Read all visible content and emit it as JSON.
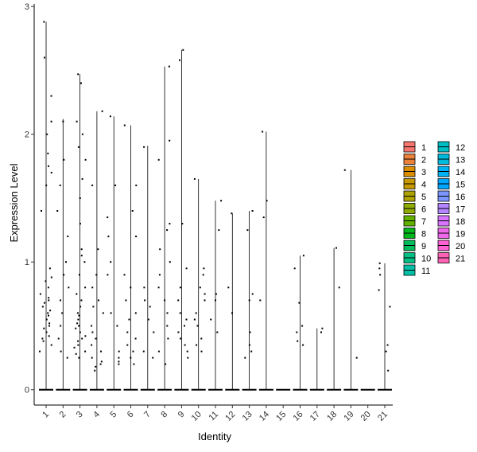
{
  "chart_data": {
    "type": "scatter",
    "subtype": "violin-jitter",
    "xlabel": "Identity",
    "ylabel": "Expression Level",
    "categories": [
      "1",
      "2",
      "3",
      "4",
      "5",
      "6",
      "7",
      "8",
      "9",
      "10",
      "11",
      "12",
      "13",
      "14",
      "15",
      "16",
      "17",
      "18",
      "19",
      "20",
      "21"
    ],
    "ylim": [
      -0.12,
      3.02
    ],
    "yticks": [
      0,
      1,
      2,
      3
    ],
    "max_values": [
      2.88,
      2.12,
      2.47,
      2.18,
      2.14,
      2.07,
      1.91,
      2.53,
      2.66,
      1.65,
      1.48,
      1.38,
      1.4,
      2.02,
      0.0,
      1.05,
      0.48,
      1.11,
      1.72,
      0.0,
      0.99
    ],
    "points": [
      [
        0.3,
        0.35,
        0.38,
        0.4,
        0.42,
        0.45,
        0.48,
        0.5,
        0.52,
        0.55,
        0.58,
        0.6,
        0.62,
        0.65,
        0.68,
        0.7,
        0.72,
        0.75,
        0.8,
        0.85,
        0.88,
        0.95,
        1.4,
        1.6,
        1.7,
        1.75,
        1.85,
        2.0,
        2.1,
        2.3,
        2.6,
        2.88
      ],
      [
        0.25,
        0.3,
        0.4,
        0.5,
        0.6,
        0.7,
        0.8,
        0.9,
        1.0,
        1.2,
        1.4,
        1.6,
        1.8,
        2.1
      ],
      [
        0.25,
        0.28,
        0.3,
        0.33,
        0.35,
        0.38,
        0.4,
        0.42,
        0.45,
        0.48,
        0.5,
        0.52,
        0.55,
        0.58,
        0.6,
        0.65,
        0.7,
        0.75,
        0.8,
        0.9,
        1.0,
        1.05,
        1.1,
        1.3,
        1.5,
        1.65,
        1.8,
        1.9,
        2.0,
        2.1,
        2.4,
        2.47
      ],
      [
        0.15,
        0.18,
        0.2,
        0.22,
        0.25,
        0.3,
        0.35,
        0.4,
        0.45,
        0.5,
        0.6,
        0.65,
        0.7,
        0.8,
        0.9,
        1.1,
        1.6,
        2.18
      ],
      [
        0.2,
        0.22,
        0.25,
        0.3,
        0.5,
        0.6,
        0.9,
        1.0,
        1.2,
        1.35,
        1.6,
        2.14
      ],
      [
        0.2,
        0.25,
        0.3,
        0.35,
        0.4,
        0.45,
        0.55,
        0.6,
        0.7,
        0.8,
        0.9,
        1.2,
        1.4,
        1.6,
        2.07
      ],
      [
        0.25,
        0.3,
        0.45,
        0.55,
        0.65,
        0.7,
        0.8,
        1.9
      ],
      [
        0.2,
        0.3,
        0.4,
        0.5,
        0.6,
        0.7,
        0.8,
        0.9,
        1.0,
        1.1,
        1.25,
        1.3,
        1.8,
        1.95,
        2.53
      ],
      [
        0.25,
        0.3,
        0.35,
        0.4,
        0.45,
        0.5,
        0.55,
        0.6,
        0.7,
        0.8,
        0.95,
        1.3,
        2.58,
        2.66
      ],
      [
        0.3,
        0.35,
        0.4,
        0.5,
        0.55,
        0.6,
        0.7,
        0.75,
        0.8,
        0.9,
        0.95,
        1.65
      ],
      [
        0.45,
        0.55,
        0.7,
        0.75,
        1.25,
        1.48
      ],
      [
        0.6,
        0.8,
        1.38
      ],
      [
        0.25,
        0.3,
        0.35,
        0.45,
        0.7,
        0.75,
        1.25,
        1.4
      ],
      [
        0.7,
        1.35,
        1.48,
        2.02
      ],
      [],
      [
        0.35,
        0.38,
        0.45,
        0.5,
        0.68,
        0.95,
        1.05
      ],
      [
        0.45,
        0.48
      ],
      [
        0.8,
        1.11
      ],
      [
        0.25,
        1.72
      ],
      [],
      [
        0.15,
        0.3,
        0.35,
        0.65,
        0.78,
        0.9,
        0.95,
        0.99
      ]
    ],
    "legend": {
      "position": "right",
      "entries": [
        {
          "label": "1",
          "color": "#F8766D"
        },
        {
          "label": "2",
          "color": "#EC8239"
        },
        {
          "label": "3",
          "color": "#DB8E00"
        },
        {
          "label": "4",
          "color": "#C79800"
        },
        {
          "label": "5",
          "color": "#AEA200"
        },
        {
          "label": "6",
          "color": "#8FAA00"
        },
        {
          "label": "7",
          "color": "#64B200"
        },
        {
          "label": "8",
          "color": "#00B81B"
        },
        {
          "label": "9",
          "color": "#00BD5C"
        },
        {
          "label": "10",
          "color": "#00C085"
        },
        {
          "label": "11",
          "color": "#00C1A7"
        },
        {
          "label": "12",
          "color": "#00BFC4"
        },
        {
          "label": "13",
          "color": "#00BADE"
        },
        {
          "label": "14",
          "color": "#00B2F3"
        },
        {
          "label": "15",
          "color": "#00A6FF"
        },
        {
          "label": "16",
          "color": "#7C96FF"
        },
        {
          "label": "17",
          "color": "#B385FF"
        },
        {
          "label": "18",
          "color": "#D874FD"
        },
        {
          "label": "19",
          "color": "#EF67EB"
        },
        {
          "label": "20",
          "color": "#FD61D3"
        },
        {
          "label": "21",
          "color": "#FF63B6"
        }
      ]
    },
    "grid": false
  }
}
